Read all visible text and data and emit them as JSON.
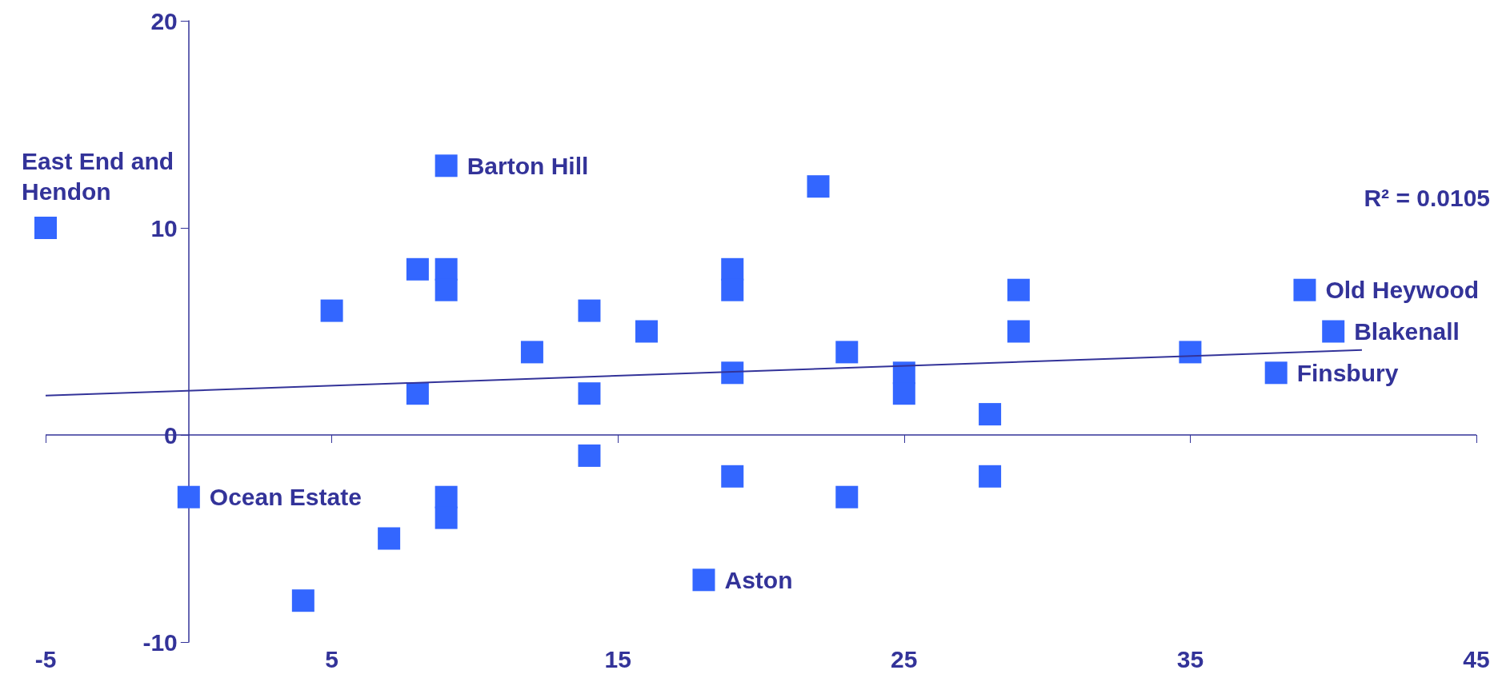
{
  "chart_data": {
    "type": "scatter",
    "xlim": [
      -5,
      45
    ],
    "xticks": [
      -5,
      5,
      15,
      25,
      35,
      45
    ],
    "ylim": [
      -10,
      20
    ],
    "yticks": [
      -10,
      0,
      10,
      20
    ],
    "grid": false,
    "ref_lines": [
      {
        "axis": "y",
        "value": 0,
        "color": "#333399"
      }
    ],
    "series": [
      {
        "marker": "square",
        "color": "#3366ff",
        "x": [
          -5,
          0,
          4,
          5,
          7,
          8,
          8,
          9,
          9,
          9,
          9,
          9,
          12,
          14,
          14,
          14,
          16,
          18,
          19,
          19,
          19,
          19,
          22,
          23,
          23,
          25,
          25,
          28,
          28,
          29,
          29,
          35,
          38,
          39,
          40
        ],
        "values": [
          10,
          -3,
          -8,
          6,
          -5,
          8,
          2,
          13,
          8,
          7,
          -3,
          -4,
          4,
          6,
          2,
          -1,
          5,
          -7,
          8,
          7,
          3,
          -2,
          12,
          4,
          -3,
          3,
          2,
          1,
          -2,
          7,
          5,
          4,
          3,
          7,
          5
        ]
      },
      {
        "type": "line",
        "marker": "none",
        "color": "#333399",
        "x": [
          -5,
          41
        ],
        "values": [
          1.9,
          4.1
        ]
      }
    ],
    "annotations": [
      {
        "text": "East End and\nHendon",
        "x": -5,
        "y": 10
      },
      {
        "text": "Ocean Estate",
        "x": 0,
        "y": -3
      },
      {
        "text": "Barton Hill",
        "x": 9,
        "y": 13
      },
      {
        "text": "Aston",
        "x": 18,
        "y": -7
      },
      {
        "text": "Old Heywood",
        "x": 39,
        "y": 7
      },
      {
        "text": "Blakenall",
        "x": 40,
        "y": 5
      },
      {
        "text": "Finsbury",
        "x": 38,
        "y": 3
      },
      "R² = 0.0105"
    ]
  }
}
